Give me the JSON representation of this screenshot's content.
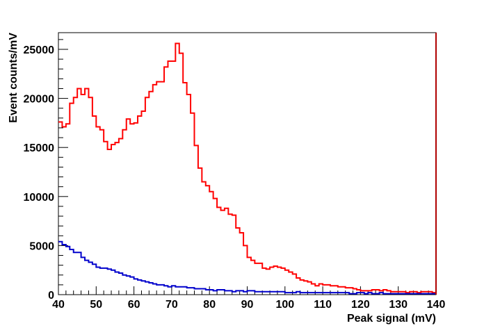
{
  "chart_data": {
    "type": "histogram",
    "xlabel": "Peak signal (mV)",
    "ylabel": "Event counts/mV",
    "xlim": [
      40,
      140
    ],
    "ylim": [
      0,
      26700
    ],
    "x_ticks": [
      40,
      50,
      60,
      70,
      80,
      90,
      100,
      110,
      120,
      130,
      140
    ],
    "y_ticks": [
      0,
      5000,
      10000,
      15000,
      20000,
      25000
    ],
    "grid": false,
    "legend": "none",
    "bin_width": 1,
    "bin_start": 40,
    "series": [
      {
        "color": "#ff0000",
        "values": [
          17600,
          17100,
          17400,
          19500,
          20100,
          21000,
          20400,
          21000,
          20100,
          18200,
          17100,
          16800,
          15600,
          14800,
          15300,
          15500,
          15900,
          16800,
          17900,
          17400,
          17500,
          18200,
          18700,
          20100,
          20700,
          21400,
          21700,
          21700,
          23200,
          23800,
          23800,
          25600,
          24600,
          21600,
          20400,
          18500,
          15200,
          12900,
          11500,
          11100,
          10500,
          9800,
          8900,
          8600,
          8800,
          8200,
          8100,
          6800,
          6300,
          5000,
          3800,
          3500,
          3200,
          3200,
          2700,
          2600,
          2800,
          2900,
          2800,
          2700,
          2500,
          2300,
          2100,
          1700,
          1500,
          1400,
          1300,
          1100,
          900,
          1100,
          1000,
          1000,
          900,
          900,
          800,
          800,
          700,
          700,
          600,
          500,
          400,
          400,
          400,
          500,
          500,
          400,
          500,
          400,
          300,
          300,
          300,
          300,
          200,
          300,
          300,
          200,
          300,
          300,
          300,
          200
        ]
      },
      {
        "color": "#0000cc",
        "values": [
          5400,
          5100,
          4900,
          4600,
          4300,
          4300,
          3800,
          3500,
          3300,
          3100,
          2800,
          2700,
          2700,
          2600,
          2500,
          2300,
          2200,
          2000,
          1900,
          1800,
          1600,
          1500,
          1400,
          1300,
          1200,
          1100,
          1000,
          1000,
          900,
          800,
          900,
          800,
          800,
          800,
          700,
          700,
          600,
          600,
          600,
          500,
          500,
          400,
          500,
          500,
          400,
          400,
          300,
          400,
          400,
          300,
          400,
          400,
          300,
          300,
          300,
          300,
          300,
          300,
          300,
          300,
          200,
          200,
          200,
          300,
          200,
          200,
          200,
          200,
          200,
          200,
          200,
          200,
          200,
          200,
          200,
          200,
          200,
          100,
          100,
          200,
          200,
          100,
          200,
          100,
          100,
          200,
          100,
          100,
          100,
          100,
          100,
          100,
          100,
          100,
          100,
          100,
          100,
          100,
          100,
          100
        ]
      }
    ]
  }
}
